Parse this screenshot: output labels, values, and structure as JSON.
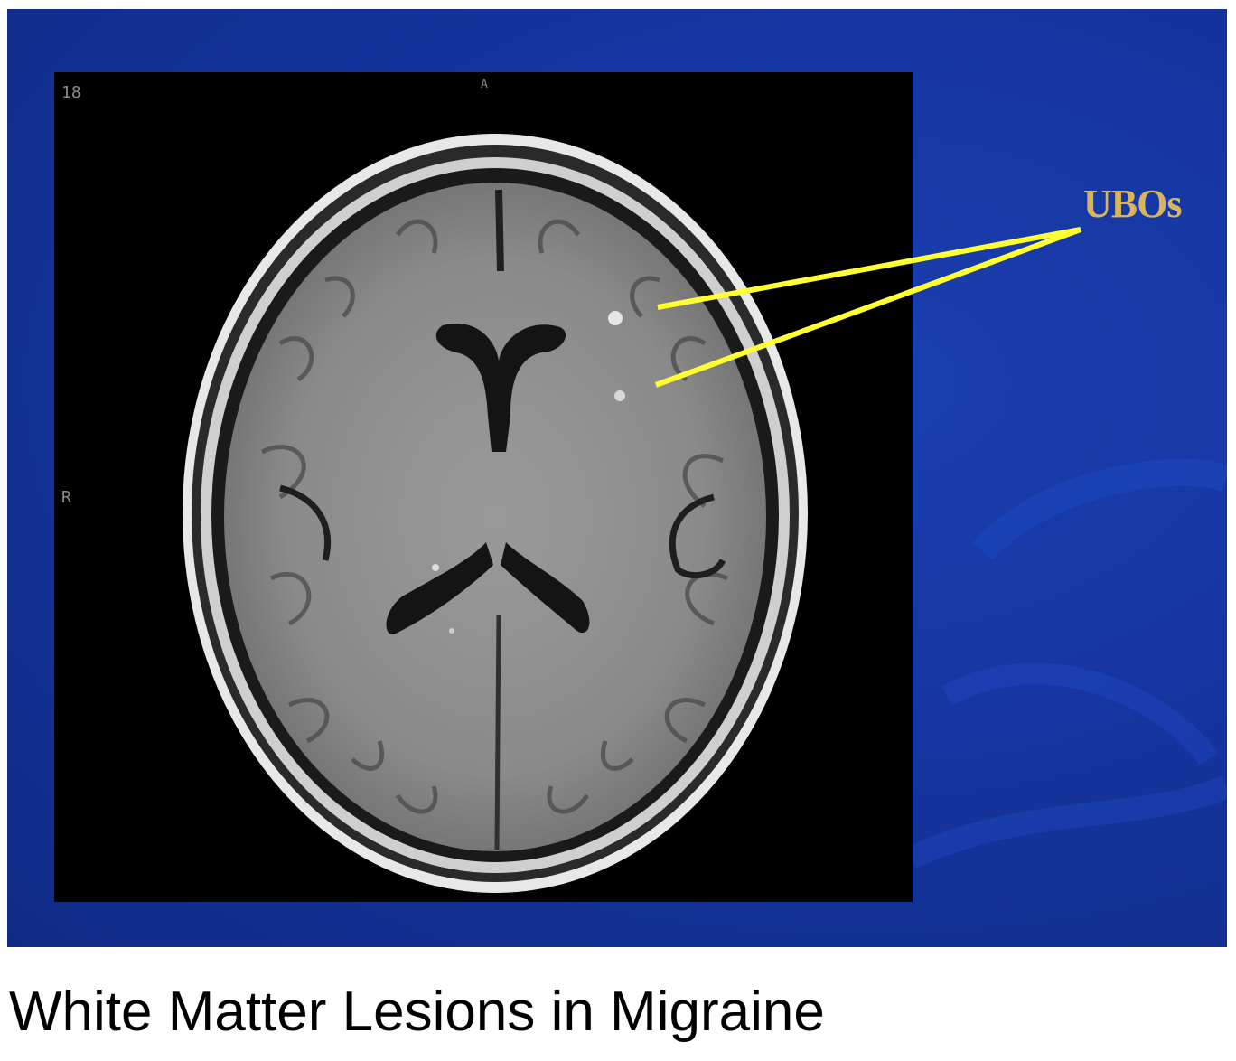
{
  "slide": {
    "annotation_label": "UBOs",
    "colors": {
      "background": "#1536a0",
      "pointer": "#ffff33",
      "annotation": "#d9b45a"
    }
  },
  "mri": {
    "slice_number": "18",
    "side_marker": "R",
    "anterior_marker": "A"
  },
  "caption": "White Matter Lesions in Migraine"
}
